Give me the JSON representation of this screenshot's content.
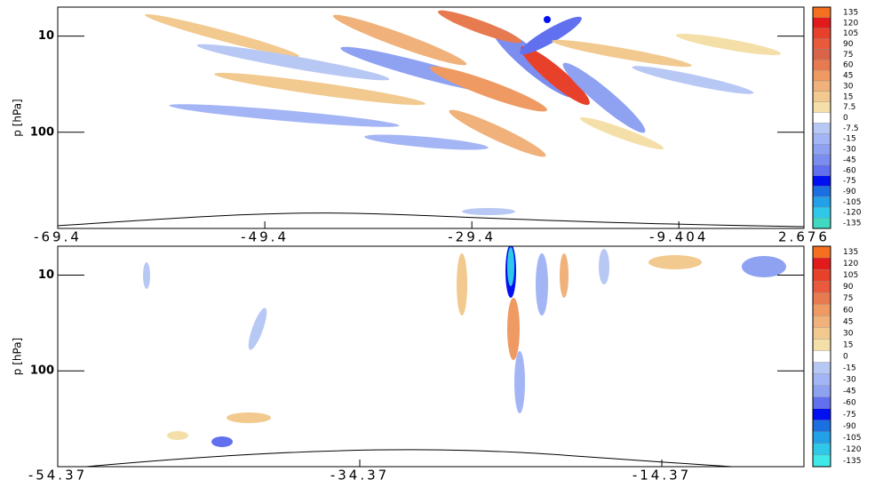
{
  "chart_data": [
    {
      "type": "contour",
      "y_label": "p [hPa]",
      "log_y": true,
      "xlim": [
        -69.4,
        2.676
      ],
      "xticks": [
        -69.4,
        -49.4,
        -29.4,
        {
          "value": -9.404,
          "label": "-9.404"
        },
        2.676
      ],
      "ylim": [
        1000,
        5
      ],
      "yticks": [
        10,
        100
      ],
      "levels": [
        135,
        120,
        105,
        90,
        75,
        60,
        45,
        30,
        15,
        7.5,
        0,
        -7.5,
        -15,
        -30,
        -45,
        -60,
        -75,
        -90,
        -105,
        -120,
        -135
      ],
      "level_colors": [
        "#f5701e",
        "#e31a1c",
        "#e8412b",
        "#e9593c",
        "#d9644a",
        "#e87a4f",
        "#ee9a62",
        "#f0b27a",
        "#f2c98e",
        "#f5dfa8",
        "#ffffff",
        "#b8c8f4",
        "#a3b5f4",
        "#8fa2f2",
        "#7b8ef0",
        "#6070ee",
        "#0010f0",
        "#1a70e0",
        "#22a0e8",
        "#30c8e8",
        "#40d8c0"
      ]
    },
    {
      "type": "contour",
      "y_label": "p [hPa]",
      "log_y": true,
      "xlim": [
        -54.37,
        -4.96
      ],
      "xticks": [
        -54.37,
        -34.37,
        -14.37
      ],
      "ylim": [
        1000,
        5
      ],
      "yticks": [
        10,
        100
      ],
      "levels": [
        135,
        120,
        105,
        90,
        75,
        60,
        45,
        30,
        15,
        0,
        -15,
        -30,
        -45,
        -60,
        -75,
        -90,
        -105,
        -120,
        -135
      ],
      "level_colors": [
        "#f5701e",
        "#e31a1c",
        "#e8412b",
        "#e9593c",
        "#e87a4f",
        "#ee9a62",
        "#f0b27a",
        "#f2c98e",
        "#f5dfa8",
        "#ffffff",
        "#b8c8f4",
        "#a3b5f4",
        "#8fa2f2",
        "#6070ee",
        "#0010f0",
        "#1a70e0",
        "#22a0e8",
        "#30c8e8",
        "#40e8e8"
      ]
    }
  ]
}
